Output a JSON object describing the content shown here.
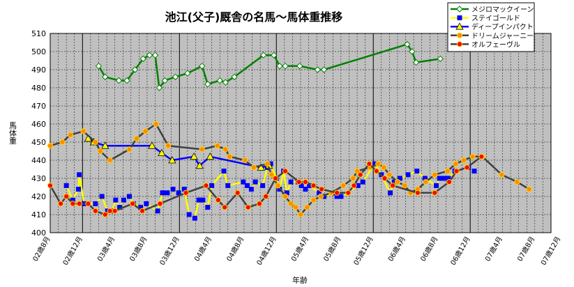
{
  "chart_data": {
    "type": "line",
    "title": "池江(父子)厩舎の名馬〜馬体重推移",
    "xlabel": "年齢",
    "ylabel": "馬体重",
    "ylim": [
      400,
      510
    ],
    "yticks": [
      400,
      410,
      420,
      430,
      440,
      450,
      460,
      470,
      480,
      490,
      500,
      510
    ],
    "xlim": [
      0,
      62
    ],
    "categories": [
      "02歳8月",
      "02歳12月",
      "03歳4月",
      "03歳8月",
      "03歳12月",
      "04歳4月",
      "04歳8月",
      "04歳12月",
      "05歳4月",
      "05歳8月",
      "05歳12月",
      "06歳4月",
      "06歳8月",
      "06歳12月",
      "07歳4月",
      "07歳8月",
      "07歳12月"
    ],
    "category_x": [
      0,
      4,
      8,
      12,
      16,
      20,
      24,
      28,
      32,
      36,
      40,
      44,
      48,
      52,
      56,
      60,
      64
    ],
    "grid": true,
    "plot_background": "#c0c0c0",
    "legend_position": "top-right",
    "series": [
      {
        "name": "メジロマックイーン",
        "color": "#008000",
        "marker": "diamond",
        "marker_fill": "#ffffff",
        "x": [
          6,
          6.8,
          8.5,
          9.5,
          10.5,
          11.5,
          12.3,
          13,
          13.5,
          14.2,
          15.5,
          17,
          18.8,
          19.5,
          21,
          21.7,
          22.8,
          26.4,
          27.7,
          28.4,
          29.1,
          30.9,
          33.1,
          33.9,
          44.2,
          44.8,
          45.3,
          48.3
        ],
        "y": [
          492,
          486,
          484,
          484,
          490,
          496,
          498,
          498,
          480,
          484,
          486,
          488,
          492,
          482,
          484,
          483,
          486,
          498,
          498,
          492,
          492,
          492,
          490,
          490,
          504,
          500,
          494,
          496
        ]
      },
      {
        "name": "ステイゴールド",
        "color": "#ffff00",
        "marker": "square",
        "marker_fill": "#0000ff",
        "x": [
          2,
          2.8,
          3.5,
          3.6,
          4.2,
          5.6,
          6.4,
          7.1,
          7.7,
          8.1,
          8.6,
          9.1,
          9.8,
          10.3,
          11.2,
          11.9,
          13.3,
          13.9,
          14.5,
          15.2,
          15.9,
          16.6,
          17.2,
          17.9,
          18.4,
          18.9,
          19.5,
          20,
          21.5,
          22,
          23.9,
          24.4,
          24.9,
          25.4,
          26.3,
          26.9,
          27.3,
          28,
          28.4,
          28.9,
          29.3,
          29.8,
          30.7,
          31.1,
          31.6,
          32.1,
          33.3,
          33.9,
          35,
          35.5,
          36,
          38.1,
          38.7,
          40.2,
          41,
          42.1,
          42.6,
          43.3,
          44.3,
          45.4,
          46.4,
          47.8,
          48.2,
          48.7,
          49.3,
          50.1,
          51.8,
          52.5
        ],
        "y": [
          426,
          418,
          424,
          432,
          416,
          416,
          420,
          412,
          412,
          418,
          414,
          418,
          420,
          416,
          414,
          416,
          412,
          422,
          422,
          424,
          422,
          424,
          410,
          408,
          418,
          418,
          414,
          426,
          434,
          426,
          428,
          426,
          424,
          428,
          426,
          436,
          438,
          430,
          424,
          434,
          422,
          428,
          428,
          426,
          424,
          426,
          422,
          420,
          422,
          420,
          420,
          426,
          428,
          438,
          432,
          422,
          428,
          430,
          432,
          434,
          430,
          426,
          430,
          430,
          430,
          434,
          436,
          434
        ],
        "note_hidden": true
      },
      {
        "name": "ディープインパクト",
        "color": "#0000ff",
        "marker": "triangle",
        "marker_fill": "#ffff00",
        "x": [
          4.7,
          5.4,
          6.8,
          12.6,
          13.8,
          15.1,
          17.8,
          18.5,
          19.8,
          26.1,
          27.1
        ],
        "y": [
          452,
          450,
          448,
          448,
          444,
          440,
          442,
          437,
          442,
          436,
          437
        ]
      },
      {
        "name": "ドリームジャーニー",
        "color": "#404040",
        "marker": "circle",
        "marker_fill": "#ff8c00",
        "x": [
          0,
          1.5,
          2.5,
          4.1,
          5.6,
          6.2,
          7.4,
          9.8,
          10.7,
          11.8,
          13.1,
          14.6,
          18.8,
          20.7,
          21.7,
          22.2,
          24.1,
          25.2,
          26.9,
          27.4,
          28.2,
          29.1,
          29.8,
          30.4,
          31,
          31.8,
          32.6,
          33.5,
          34.8,
          36.3,
          37.5,
          38,
          39.6,
          40.6,
          41.3,
          42,
          43,
          43.9,
          44.6,
          45.5,
          46.5,
          47.6,
          49.2,
          50.2,
          51.2,
          52.3,
          53.5,
          55.9,
          57.8,
          59.3
        ],
        "y": [
          448,
          450,
          454,
          456,
          450,
          445,
          440,
          446,
          452,
          456,
          460,
          448,
          446,
          448,
          446,
          442,
          440,
          436,
          438,
          432,
          426,
          420,
          416,
          414,
          410,
          414,
          418,
          420,
          422,
          426,
          430,
          434,
          436,
          438,
          436,
          432,
          428,
          426,
          422,
          424,
          428,
          432,
          434,
          438,
          440,
          442,
          442,
          432,
          428,
          424
        ],
        "note_hidden": true
      },
      {
        "name": "オルフェーヴル",
        "color": "#404040",
        "marker": "circle",
        "marker_fill": "#ff0000",
        "x": [
          0,
          1.3,
          2,
          2.8,
          3.6,
          4.7,
          5.6,
          6.8,
          7.4,
          8,
          10.2,
          11.4,
          13.6,
          16.8,
          19.3,
          20.8,
          21.6,
          23.2,
          24.5,
          25.9,
          26.7,
          27.9,
          29.1,
          30.8,
          31.6,
          32.6,
          33.6,
          35.5,
          36.9,
          37.6,
          38.4,
          39.5,
          40.4,
          41.4,
          42.4,
          45.5,
          47.6,
          49.4,
          50.3,
          51.6,
          53.4
        ],
        "y": [
          426,
          416,
          420,
          416,
          416,
          416,
          412,
          410,
          412,
          412,
          416,
          412,
          416,
          422,
          426,
          418,
          414,
          422,
          414,
          416,
          420,
          430,
          434,
          428,
          428,
          426,
          424,
          422,
          422,
          426,
          432,
          438,
          434,
          430,
          426,
          422,
          422,
          428,
          434,
          436,
          442
        ],
        "note_hidden": true
      }
    ]
  }
}
